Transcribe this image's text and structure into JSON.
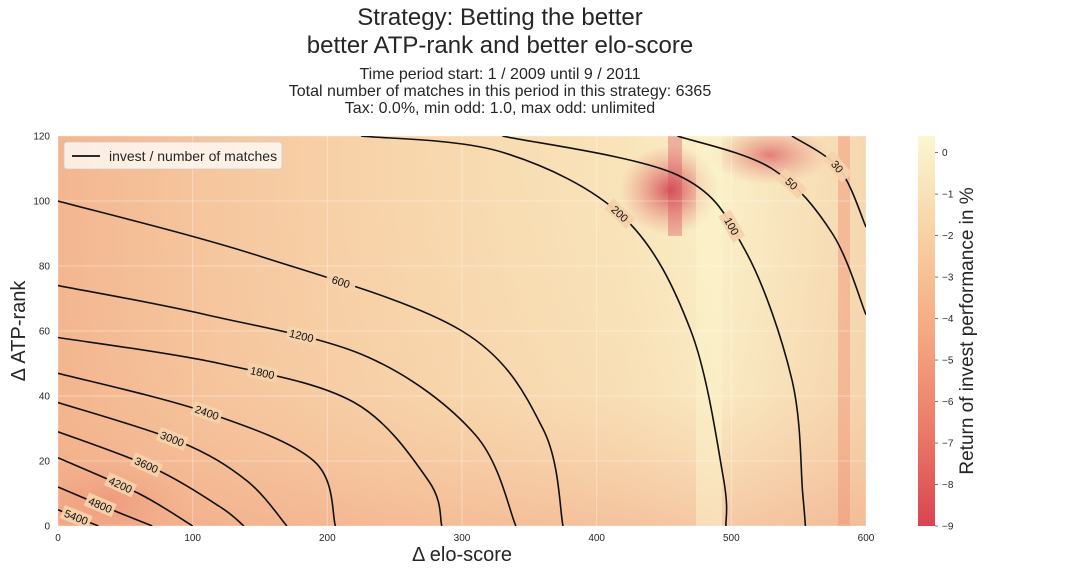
{
  "chart_data": {
    "type": "heatmap",
    "title_lines": [
      "Strategy: Betting the better",
      "better ATP-rank and better elo-score"
    ],
    "subtitle_lines": [
      "Time period start: 1 / 2009 until 9 / 2011",
      "Total number of matches in this period in this strategy: 6365",
      "Tax: 0.0%, min odd: 1.0, max odd: unlimited"
    ],
    "xlabel": "Δ elo-score",
    "ylabel": "Δ ATP-rank",
    "xlim": [
      0,
      600
    ],
    "ylim": [
      0,
      120
    ],
    "xticks": [
      "0",
      "100",
      "200",
      "300",
      "400",
      "500",
      "600"
    ],
    "yticks": [
      "0",
      "20",
      "40",
      "60",
      "80",
      "100",
      "120"
    ],
    "legend": {
      "label": "invest / number of matches",
      "position": "top-left"
    },
    "colorbar": {
      "label": "Return of invest performance in %",
      "ticks": [
        "0",
        "−1",
        "−2",
        "−3",
        "−4",
        "−5",
        "−6",
        "−7",
        "−8",
        "−9"
      ],
      "range": [
        -9,
        0.4
      ],
      "colormap": [
        "#d33f4b",
        "#f1916b",
        "#f7c394",
        "#fbf7d2"
      ]
    },
    "contour_levels": [
      {
        "label": "5400",
        "points": [
          [
            0,
            5
          ],
          [
            30,
            0
          ]
        ]
      },
      {
        "label": "4800",
        "points": [
          [
            0,
            12
          ],
          [
            40,
            5
          ],
          [
            70,
            0
          ]
        ]
      },
      {
        "label": "4200",
        "points": [
          [
            0,
            21
          ],
          [
            60,
            10
          ],
          [
            100,
            0
          ]
        ]
      },
      {
        "label": "3600",
        "points": [
          [
            0,
            29
          ],
          [
            70,
            18
          ],
          [
            120,
            6
          ],
          [
            138,
            0
          ]
        ]
      },
      {
        "label": "3000",
        "points": [
          [
            0,
            38
          ],
          [
            90,
            26
          ],
          [
            140,
            14
          ],
          [
            170,
            0
          ]
        ]
      },
      {
        "label": "2400",
        "points": [
          [
            0,
            47
          ],
          [
            110,
            35
          ],
          [
            190,
            20
          ],
          [
            206,
            0
          ]
        ]
      },
      {
        "label": "1800",
        "points": [
          [
            0,
            58
          ],
          [
            120,
            50
          ],
          [
            220,
            38
          ],
          [
            275,
            14
          ],
          [
            285,
            0
          ]
        ]
      },
      {
        "label": "1200",
        "points": [
          [
            0,
            74
          ],
          [
            110,
            65
          ],
          [
            230,
            52
          ],
          [
            310,
            28
          ],
          [
            340,
            0
          ]
        ]
      },
      {
        "label": "600",
        "points": [
          [
            0,
            100
          ],
          [
            150,
            83
          ],
          [
            300,
            60
          ],
          [
            360,
            30
          ],
          [
            375,
            0
          ]
        ]
      },
      {
        "label": "200",
        "points": [
          [
            225,
            120
          ],
          [
            330,
            115
          ],
          [
            420,
            95
          ],
          [
            470,
            60
          ],
          [
            494,
            15
          ],
          [
            496,
            0
          ]
        ]
      },
      {
        "label": "100",
        "points": [
          [
            330,
            120
          ],
          [
            460,
            108
          ],
          [
            510,
            85
          ],
          [
            545,
            45
          ],
          [
            553,
            10
          ],
          [
            555,
            0
          ]
        ]
      },
      {
        "label": "50",
        "points": [
          [
            460,
            120
          ],
          [
            530,
            110
          ],
          [
            575,
            90
          ],
          [
            600,
            65
          ]
        ]
      },
      {
        "label": "30",
        "points": [
          [
            545,
            120
          ],
          [
            580,
            110
          ],
          [
            600,
            92
          ]
        ]
      }
    ]
  }
}
